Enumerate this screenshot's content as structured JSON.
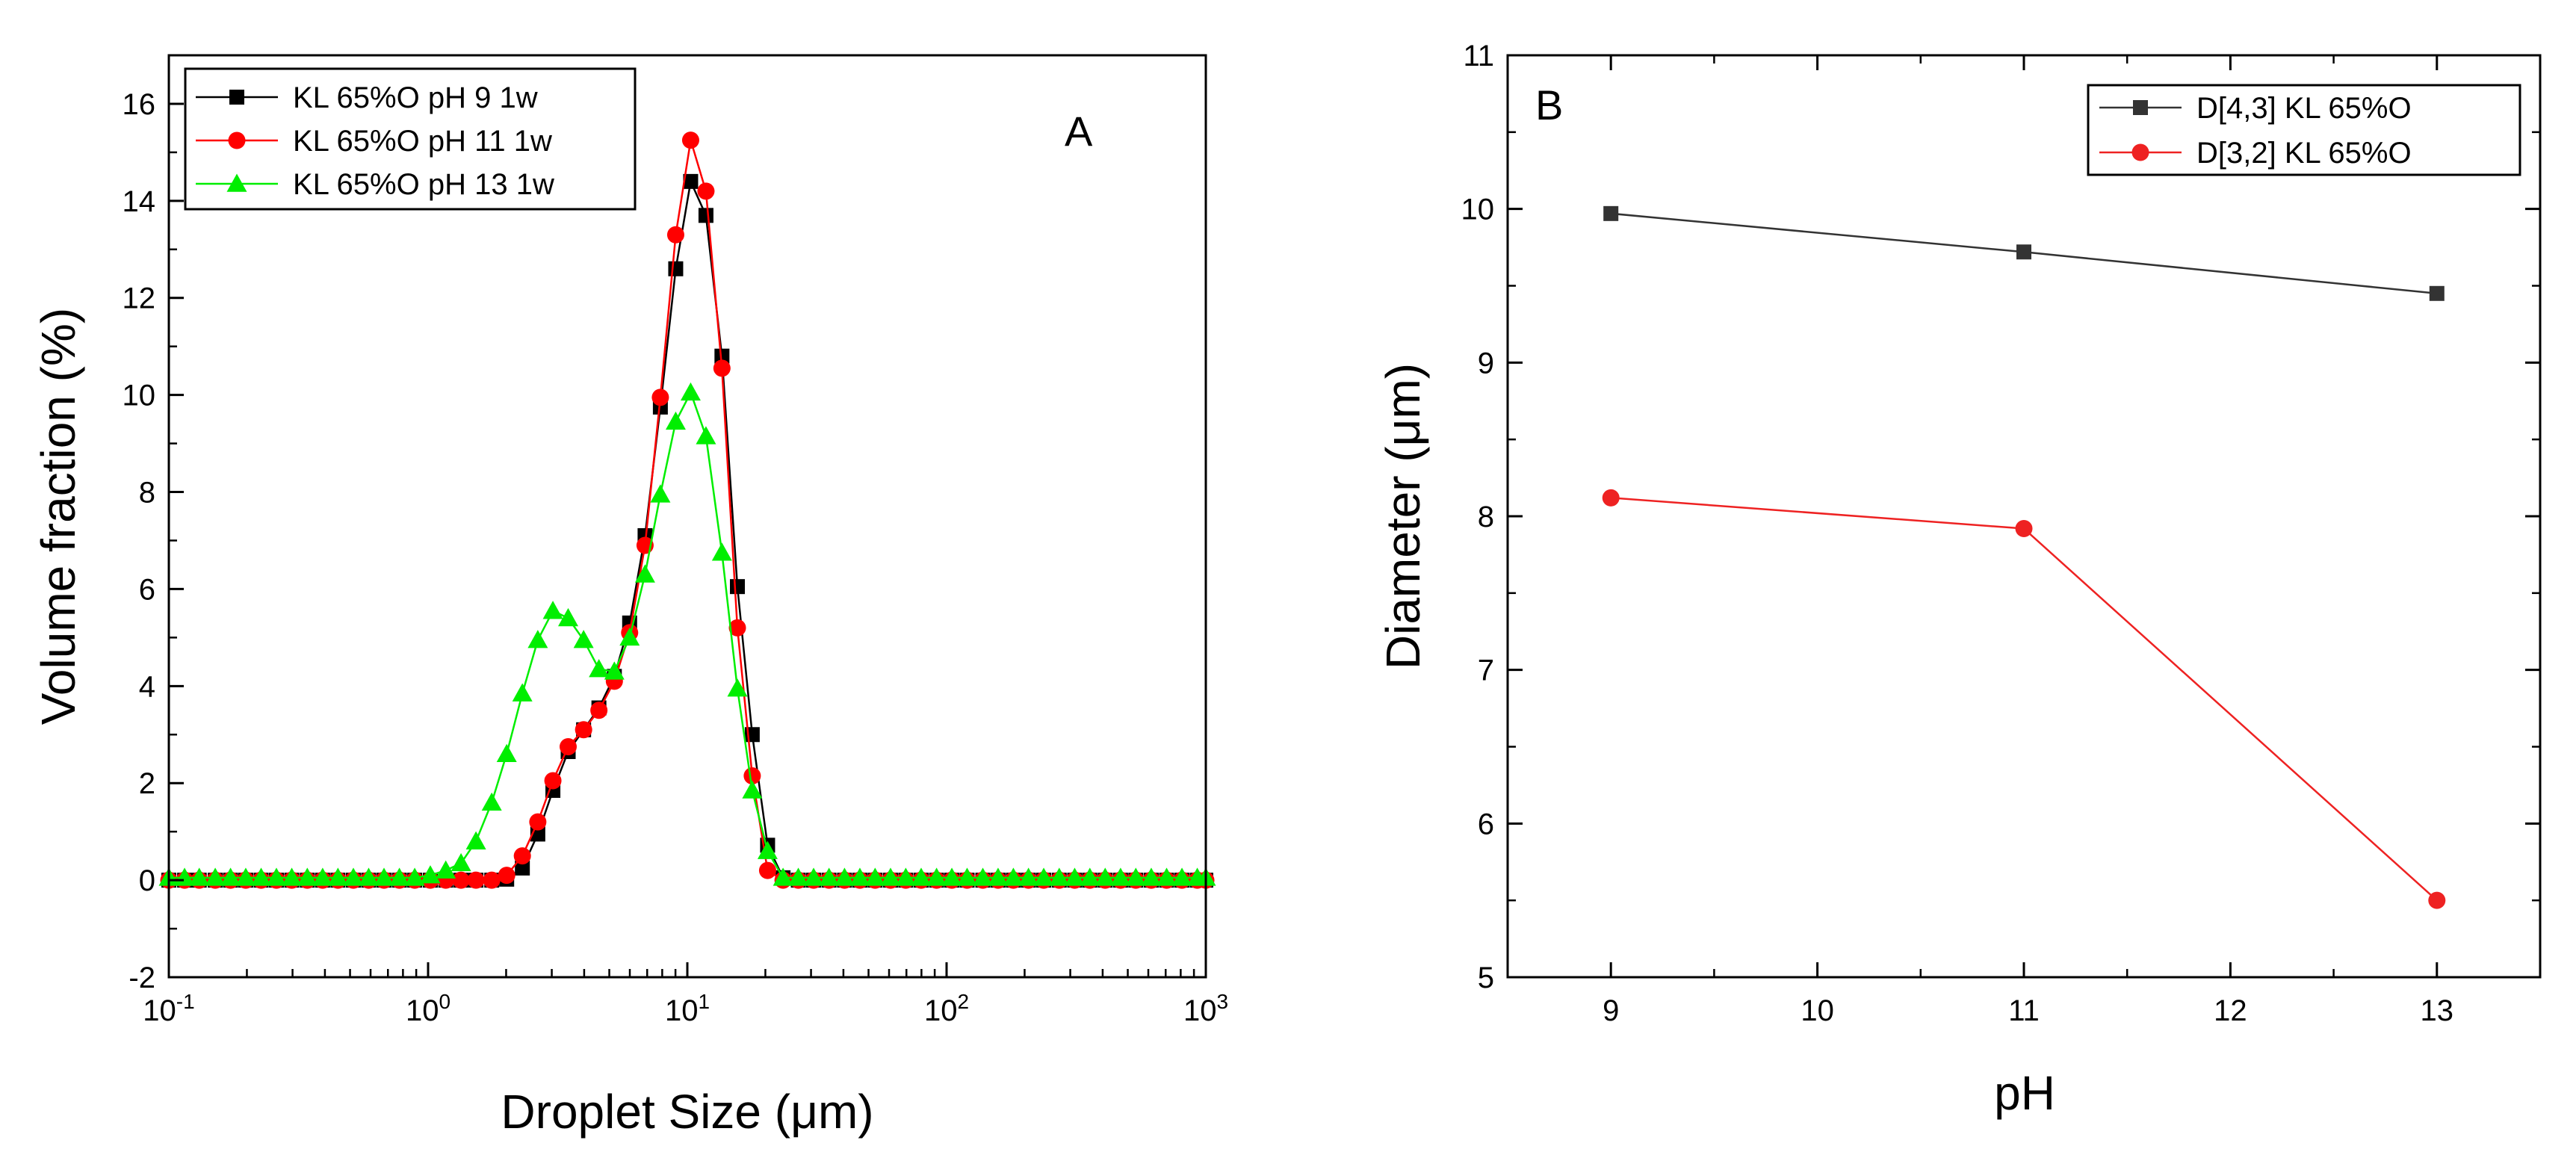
{
  "chart_data": [
    {
      "panel": "A",
      "type": "line",
      "x_scale": "log",
      "xlabel": "Droplet Size (μm)",
      "ylabel": "Volume fraction (%)",
      "xlim": [
        0.1,
        1000
      ],
      "ylim": [
        -2,
        17
      ],
      "x_tick_labels": [
        {
          "base": "10",
          "exp": "-1"
        },
        {
          "base": "10",
          "exp": "0"
        },
        {
          "base": "10",
          "exp": "1"
        },
        {
          "base": "10",
          "exp": "2"
        },
        {
          "base": "10",
          "exp": "3"
        }
      ],
      "y_ticks": [
        -2,
        0,
        2,
        4,
        6,
        8,
        10,
        12,
        14,
        16
      ],
      "legend_position": "top-left",
      "x": [
        0.1,
        0.115,
        0.131,
        0.151,
        0.173,
        0.198,
        0.227,
        0.26,
        0.298,
        0.342,
        0.392,
        0.449,
        0.515,
        0.59,
        0.676,
        0.775,
        0.888,
        1.02,
        1.17,
        1.34,
        1.53,
        1.76,
        2.01,
        2.31,
        2.65,
        3.03,
        3.47,
        3.98,
        4.56,
        5.23,
        5.99,
        6.87,
        7.87,
        9.02,
        10.3,
        11.8,
        13.6,
        15.6,
        17.8,
        20.4,
        23.4,
        26.8,
        30.7,
        35.2,
        40.4,
        46.3,
        53.0,
        60.8,
        69.6,
        79.8,
        91.5,
        104.8,
        120,
        138,
        158,
        181,
        207,
        237,
        272,
        312,
        357,
        409,
        469,
        537,
        616,
        706,
        809,
        927,
        1000
      ],
      "series": [
        {
          "name": "KL 65%O pH 9 1w",
          "color": "#000000",
          "marker": "square",
          "values": [
            0,
            0,
            0,
            0,
            0,
            0,
            0,
            0,
            0,
            0,
            0,
            0,
            0,
            0,
            0,
            0,
            0,
            0,
            0,
            0,
            0,
            0,
            0.02,
            0.25,
            0.95,
            1.85,
            2.65,
            3.1,
            3.55,
            4.2,
            5.3,
            7.1,
            9.75,
            12.6,
            14.4,
            13.7,
            10.8,
            6.05,
            3.0,
            0.72,
            0.05,
            0,
            0,
            0,
            0,
            0,
            0,
            0,
            0,
            0,
            0,
            0,
            0,
            0,
            0,
            0,
            0,
            0,
            0,
            0,
            0,
            0,
            0,
            0,
            0,
            0,
            0,
            0,
            0
          ]
        },
        {
          "name": "KL 65%O pH 11 1w",
          "color": "#ff0000",
          "marker": "circle",
          "values": [
            0,
            0,
            0,
            0,
            0,
            0,
            0,
            0,
            0,
            0,
            0,
            0,
            0,
            0,
            0,
            0,
            0,
            0,
            0,
            0,
            0,
            0,
            0.1,
            0.5,
            1.2,
            2.05,
            2.75,
            3.1,
            3.5,
            4.1,
            5.1,
            6.9,
            9.95,
            13.3,
            15.25,
            14.2,
            10.55,
            5.2,
            2.15,
            0.2,
            0,
            0,
            0,
            0,
            0,
            0,
            0,
            0,
            0,
            0,
            0,
            0,
            0,
            0,
            0,
            0,
            0,
            0,
            0,
            0,
            0,
            0,
            0,
            0,
            0,
            0,
            0,
            0,
            0
          ]
        },
        {
          "name": "KL 65%O pH 13 1w",
          "color": "#00ee00",
          "marker": "triangle",
          "values": [
            0.05,
            0.05,
            0.05,
            0.05,
            0.05,
            0.05,
            0.05,
            0.05,
            0.05,
            0.05,
            0.05,
            0.05,
            0.05,
            0.05,
            0.05,
            0.05,
            0.05,
            0.1,
            0.2,
            0.35,
            0.8,
            1.6,
            2.6,
            3.85,
            4.95,
            5.55,
            5.4,
            4.95,
            4.35,
            4.3,
            5.0,
            6.3,
            7.95,
            9.45,
            10.05,
            9.15,
            6.75,
            3.95,
            1.85,
            0.6,
            0.05,
            0.05,
            0.05,
            0.05,
            0.05,
            0.05,
            0.05,
            0.05,
            0.05,
            0.05,
            0.05,
            0.05,
            0.05,
            0.05,
            0.05,
            0.05,
            0.05,
            0.05,
            0.05,
            0.05,
            0.05,
            0.05,
            0.05,
            0.05,
            0.05,
            0.05,
            0.05,
            0.05,
            0.05
          ]
        }
      ],
      "annotation": "A"
    },
    {
      "panel": "B",
      "type": "line",
      "xlabel": "pH",
      "ylabel": "Diameter (μm)",
      "xlim": [
        8.5,
        13.5
      ],
      "ylim": [
        5,
        11
      ],
      "x_ticks": [
        9,
        10,
        11,
        12,
        13
      ],
      "y_ticks": [
        5,
        6,
        7,
        8,
        9,
        10,
        11
      ],
      "legend_position": "top-right",
      "x": [
        9,
        11,
        13
      ],
      "series": [
        {
          "name": "D[4,3] KL 65%O",
          "color": "#333333",
          "marker": "square",
          "values": [
            9.97,
            9.72,
            9.45
          ]
        },
        {
          "name": "D[3,2] KL 65%O",
          "color": "#ee2222",
          "marker": "circle",
          "values": [
            8.12,
            7.92,
            5.5
          ]
        }
      ],
      "annotation": "B"
    }
  ]
}
